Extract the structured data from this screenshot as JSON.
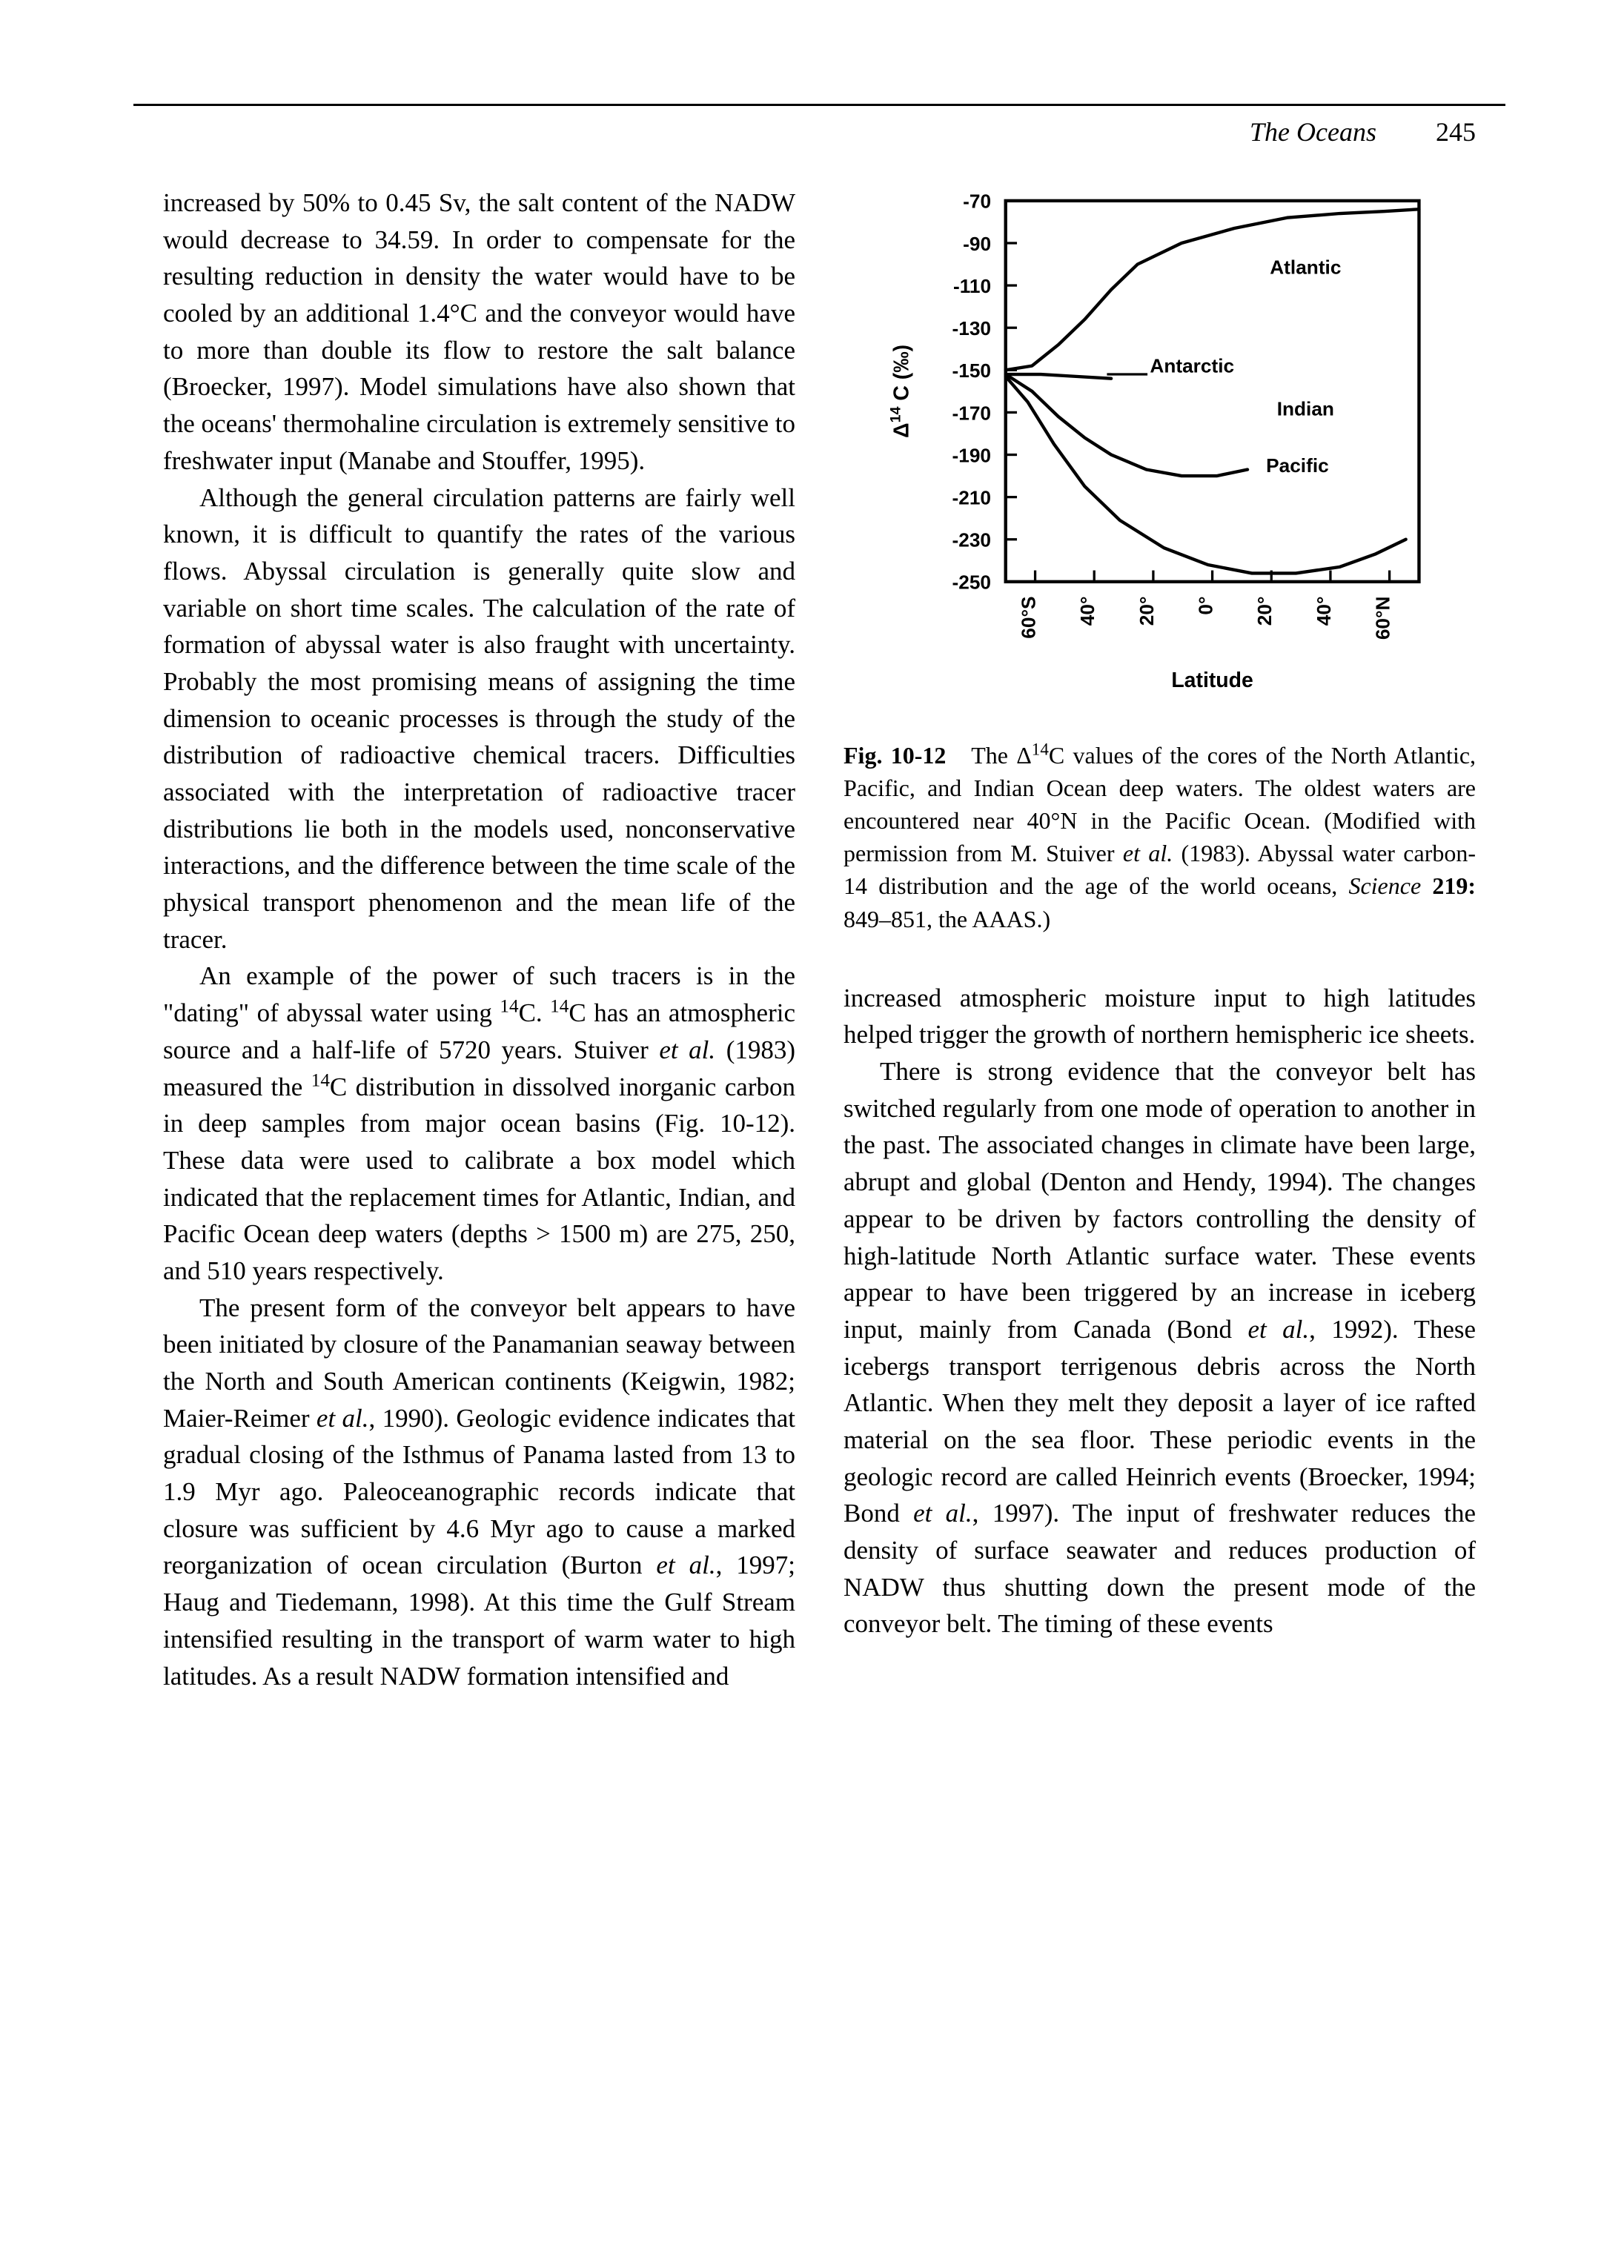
{
  "header": {
    "running_head": "The Oceans",
    "page_number": "245"
  },
  "left_column": {
    "p1": "increased by 50% to 0.45 Sv, the salt content of the NADW would decrease to 34.59. In order to compensate for the resulting reduction in density the water would have to be cooled by an additional 1.4°C and the conveyor would have to more than double its flow to restore the salt balance (Broecker, 1997). Model simulations have also shown that the oceans' thermohaline circulation is extremely sensitive to freshwater input (Manabe and Stouffer, 1995).",
    "p2": "Although the general circulation patterns are fairly well known, it is difficult to quantify the rates of the various flows. Abyssal circulation is generally quite slow and variable on short time scales. The calculation of the rate of formation of abyssal water is also fraught with uncertainty. Probably the most promising means of assigning the time dimension to oceanic processes is through the study of the distribution of radioactive chemical tracers. Difficulties associated with the interpretation of radioactive tracer distributions lie both in the models used, nonconservative interactions, and the difference between the time scale of the physical transport phenomenon and the mean life of the tracer.",
    "p3_a": "An example of the power of such tracers is in the \"dating\" of abyssal water using ",
    "p3_b": "C. ",
    "p3_c": "C has an atmospheric source and a half-life of 5720 years. Stuiver ",
    "p3_d": " (1983) measured the ",
    "p3_e": "C distribution in dissolved inorganic carbon in deep samples from major ocean basins (Fig. 10-12). These data were used to calibrate a box model which indicated that the replacement times for Atlantic, Indian, and Pacific Ocean deep waters (depths > 1500 m) are 275, 250, and 510 years respectively.",
    "p4_a": "The present form of the conveyor belt appears to have been initiated by closure of the Panamanian seaway between the North and South American continents (Keigwin, 1982; Maier-Reimer ",
    "p4_b": ", 1990). Geologic evidence indicates that gradual closing of the Isthmus of Panama lasted from 13 to 1.9 Myr ago. Paleoceanographic records indicate that closure was sufficient by 4.6 Myr ago to cause a marked reorganization of ocean circulation (Burton ",
    "p4_c": ", 1997; Haug and Tiedemann, 1998). At this time the Gulf Stream intensified resulting in the transport of warm water to high latitudes. As a result NADW formation intensified and"
  },
  "right_column": {
    "p1": "increased atmospheric moisture input to high latitudes helped trigger the growth of northern hemispheric ice sheets.",
    "p2_a": "There is strong evidence that the conveyor belt has switched regularly from one mode of operation to another in the past. The associated changes in climate have been large, abrupt and global (Denton and Hendy, 1994). The changes appear to be driven by factors controlling the density of high-latitude North Atlantic surface water. These events appear to have been triggered by an increase in iceberg input, mainly from Canada (Bond ",
    "p2_b": ", 1992). These icebergs transport terrigenous debris across the North Atlantic. When they melt they deposit a layer of ice rafted material on the sea floor. These periodic events in the geologic record are called Heinrich events (Broecker, 1994; Bond ",
    "p2_c": ", 1997). The input of freshwater reduces the density of surface seawater and reduces production of NADW thus shutting down the present mode of the conveyor belt. The timing of these events"
  },
  "figure": {
    "type": "line",
    "ylabel": "Δ14 C (‰)",
    "xlabel": "Latitude",
    "ylim": [
      -250,
      -70
    ],
    "ytick_step": 20,
    "yticks": [
      -70,
      -90,
      -110,
      -130,
      -150,
      -170,
      -190,
      -210,
      -230,
      -250
    ],
    "xticks": [
      "60°S",
      "40°",
      "20°",
      "0°",
      "20°",
      "40°",
      "60°N"
    ],
    "frame_color": "#000000",
    "line_width": 3,
    "background_color": "#ffffff",
    "font_family": "Helvetica, Arial, sans-serif",
    "tick_fontsize": 24,
    "label_fontsize": 26,
    "series": {
      "Atlantic": {
        "label": "Atlantic",
        "label_pos": [
          370,
          90
        ],
        "points": [
          [
            0,
            -150
          ],
          [
            30,
            -148
          ],
          [
            60,
            -138
          ],
          [
            90,
            -126
          ],
          [
            120,
            -112
          ],
          [
            150,
            -100
          ],
          [
            200,
            -90
          ],
          [
            260,
            -83
          ],
          [
            320,
            -78
          ],
          [
            380,
            -76
          ],
          [
            430,
            -75
          ],
          [
            470,
            -74
          ]
        ]
      },
      "Antarctic": {
        "label": "Antarctic",
        "label_pos": [
          230,
          212
        ],
        "points": [
          [
            0,
            -152
          ],
          [
            40,
            -152
          ],
          [
            80,
            -153
          ],
          [
            120,
            -154
          ]
        ]
      },
      "Indian": {
        "label": "Indian",
        "label_pos": [
          370,
          265
        ],
        "points": [
          [
            0,
            -152
          ],
          [
            30,
            -160
          ],
          [
            60,
            -172
          ],
          [
            90,
            -182
          ],
          [
            120,
            -190
          ],
          [
            160,
            -197
          ],
          [
            200,
            -200
          ],
          [
            240,
            -200
          ],
          [
            275,
            -197
          ]
        ]
      },
      "Pacific": {
        "label": "Pacific",
        "label_pos": [
          360,
          335
        ],
        "points": [
          [
            0,
            -153
          ],
          [
            25,
            -165
          ],
          [
            55,
            -185
          ],
          [
            90,
            -205
          ],
          [
            130,
            -221
          ],
          [
            180,
            -234
          ],
          [
            230,
            -242
          ],
          [
            280,
            -246
          ],
          [
            330,
            -246
          ],
          [
            380,
            -243
          ],
          [
            420,
            -237
          ],
          [
            455,
            -230
          ]
        ]
      }
    },
    "caption_label": "Fig. 10-12",
    "caption_a": "The Δ",
    "caption_b": "C values of the cores of the North Atlantic, Pacific, and Indian Ocean deep waters. The oldest waters are encountered near 40°N in the Pacific Ocean. (Modified with permission from M. Stuiver ",
    "caption_c": " (1983). Abyssal water carbon-14 distribution and the age of the world oceans, ",
    "caption_d": " 849–851, the AAAS.)"
  }
}
